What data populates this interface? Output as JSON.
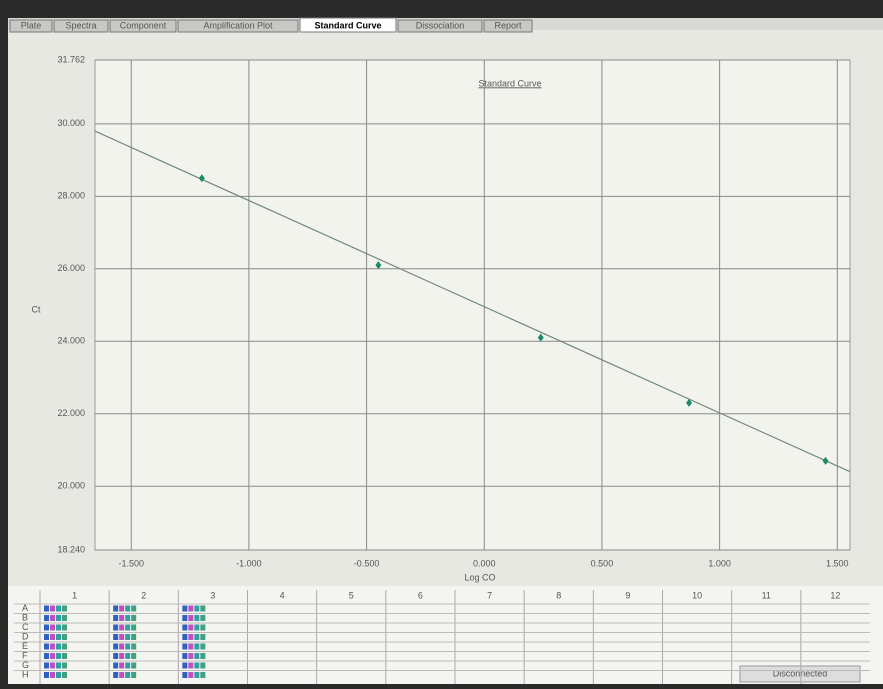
{
  "tabs": [
    "Plate",
    "Spectra",
    "Component",
    "Amplification Plot",
    "Standard Curve",
    "Dissociation",
    "Report"
  ],
  "active_tab": 4,
  "chart_data": {
    "type": "scatter",
    "title": "Standard Curve",
    "x_label": "Log CO",
    "y_label": "Ct",
    "xlim": [
      -1.654,
      1.554
    ],
    "ylim": [
      18.24,
      31.762
    ],
    "xticks": [
      {
        "value": -1.5,
        "label": "-1.500"
      },
      {
        "value": -1.0,
        "label": "-1.000"
      },
      {
        "value": -0.5,
        "label": "-0.500"
      },
      {
        "value": 0.0,
        "label": "0.000"
      },
      {
        "value": 0.5,
        "label": "0.500"
      },
      {
        "value": 1.0,
        "label": "1.000"
      },
      {
        "value": 1.5,
        "label": "1.500"
      }
    ],
    "yticks": [
      {
        "value": 18.24,
        "label": "18.240"
      },
      {
        "value": 20,
        "label": "20.000"
      },
      {
        "value": 22,
        "label": "22.000"
      },
      {
        "value": 24,
        "label": "24.000"
      },
      {
        "value": 26,
        "label": "26.000"
      },
      {
        "value": 28,
        "label": "28.000"
      },
      {
        "value": 30,
        "label": "30.000"
      },
      {
        "value": 31.762,
        "label": "31.762"
      }
    ],
    "grid": true,
    "x": [
      -1.2,
      -0.45,
      0.24,
      0.87,
      1.45
    ],
    "values": [
      28.5,
      26.1,
      24.1,
      22.3,
      20.7
    ],
    "color": "#1a8a6a",
    "trend_line": {
      "x": [
        -1.654,
        1.554
      ],
      "values": [
        29.8,
        20.4
      ],
      "color": "#6f8a80"
    }
  },
  "plate": {
    "columns": [
      "1",
      "2",
      "3",
      "4",
      "5",
      "6",
      "7",
      "8",
      "9",
      "10",
      "11",
      "12"
    ],
    "rows": [
      "A",
      "B",
      "C",
      "D",
      "E",
      "F",
      "G",
      "H"
    ]
  },
  "status": "Disconnected"
}
